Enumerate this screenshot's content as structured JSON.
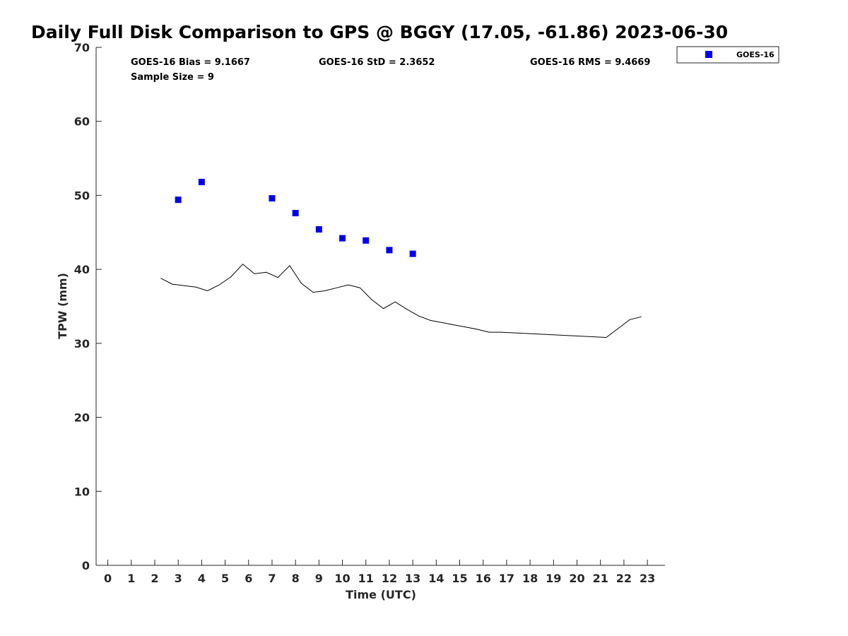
{
  "chart_data": {
    "type": "scatter",
    "title": "Daily Full Disk Comparison to GPS @ BGGY (17.05, -61.86) 2023-06-30",
    "xlabel": "Time (UTC)",
    "ylabel": "TPW (mm)",
    "xlim": [
      -0.5,
      23.75
    ],
    "ylim": [
      0,
      70
    ],
    "xticks": [
      "0",
      "1",
      "2",
      "3",
      "4",
      "5",
      "6",
      "7",
      "8",
      "9",
      "10",
      "11",
      "12",
      "13",
      "14",
      "15",
      "16",
      "17",
      "18",
      "19",
      "20",
      "21",
      "22",
      "23"
    ],
    "yticks": [
      "0",
      "10",
      "20",
      "30",
      "40",
      "50",
      "60",
      "70"
    ],
    "grid": false,
    "legend_position": "top-right",
    "colors": {
      "goes16": "#0000ee",
      "gps_line": "#000000",
      "axis": "#262626"
    },
    "stats": {
      "bias": "GOES-16 Bias = 9.1667",
      "std": "GOES-16 StD = 2.3652",
      "rms": "GOES-16 RMS = 9.4669",
      "sample": "Sample Size = 9"
    },
    "series": [
      {
        "name": "GOES-16",
        "kind": "scatter",
        "x": [
          3,
          4,
          7,
          8,
          9,
          10,
          11,
          12,
          13
        ],
        "y": [
          49.4,
          51.8,
          49.6,
          47.6,
          45.4,
          44.2,
          43.9,
          42.6,
          42.1
        ]
      },
      {
        "kind": "line",
        "x": [
          2.25,
          2.75,
          3.25,
          3.75,
          4.25,
          4.75,
          5.25,
          5.75,
          6.25,
          6.75,
          7.25,
          7.75,
          8.25,
          8.75,
          9.25,
          9.75,
          10.25,
          10.75,
          11.25,
          11.75,
          12.25,
          12.75,
          13.25,
          13.75,
          14.25,
          14.75,
          15.25,
          15.75,
          16.25,
          16.75,
          21.25,
          21.75,
          22.25,
          22.75
        ],
        "y": [
          38.8,
          38.0,
          37.8,
          37.6,
          37.1,
          37.9,
          39.0,
          40.7,
          39.4,
          39.6,
          38.9,
          40.5,
          38.1,
          36.9,
          37.1,
          37.5,
          37.9,
          37.5,
          35.9,
          34.7,
          35.6,
          34.6,
          33.7,
          33.1,
          32.8,
          32.5,
          32.2,
          31.9,
          31.5,
          31.5,
          30.8,
          32.0,
          33.2,
          33.6
        ]
      }
    ]
  }
}
